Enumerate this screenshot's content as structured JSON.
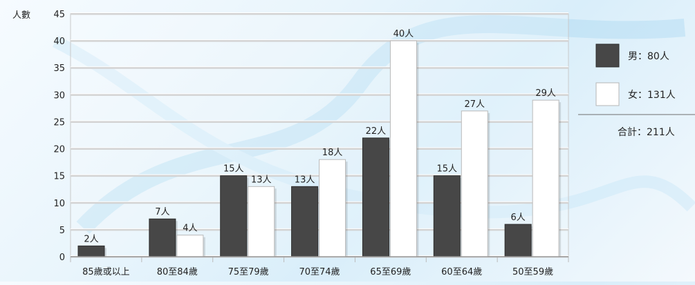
{
  "chart_data": {
    "type": "bar",
    "ylabel": "人數",
    "ylim": [
      0,
      45
    ],
    "yticks": [
      0,
      5,
      10,
      15,
      20,
      25,
      30,
      35,
      40,
      45
    ],
    "grid": true,
    "categories": [
      "85歲或以上",
      "80至84歲",
      "75至79歲",
      "70至74歲",
      "65至69歲",
      "60至64歲",
      "50至59歲"
    ],
    "series": [
      {
        "name": "男",
        "values": [
          2,
          7,
          15,
          13,
          22,
          15,
          6
        ],
        "labels": [
          "2人",
          "7人",
          "15人",
          "13人",
          "22人",
          "15人",
          "6人"
        ],
        "color": "#474747"
      },
      {
        "name": "女",
        "values": [
          0,
          4,
          13,
          18,
          40,
          27,
          29
        ],
        "labels": [
          "",
          "4人",
          "13人",
          "18人",
          "40人",
          "27人",
          "29人"
        ],
        "color": "#ffffff"
      }
    ],
    "legend": {
      "position": "right",
      "items": [
        {
          "label": "男：80人",
          "color": "#474747"
        },
        {
          "label": "女：131人",
          "color": "#ffffff"
        }
      ],
      "total": "合計：211人"
    }
  }
}
